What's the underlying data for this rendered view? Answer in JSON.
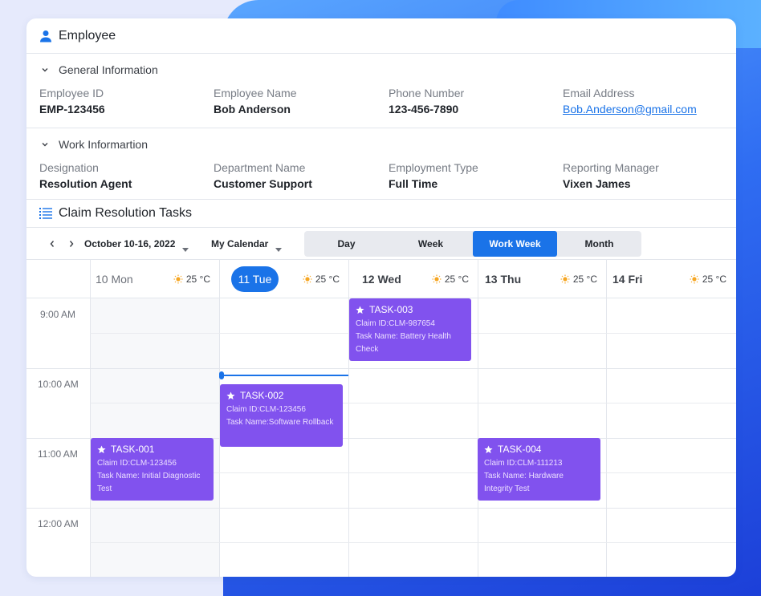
{
  "employee": {
    "title": "Employee",
    "general_section": "General Information",
    "general_fields": [
      {
        "label": "Employee ID",
        "value": "EMP-123456"
      },
      {
        "label": "Employee Name",
        "value": "Bob Anderson"
      },
      {
        "label": "Phone Number",
        "value": "123-456-7890"
      },
      {
        "label": "Email Address",
        "value": "Bob.Anderson@gmail.com"
      }
    ],
    "work_section": "Work Informartion",
    "work_fields": [
      {
        "label": "Designation",
        "value": "Resolution Agent"
      },
      {
        "label": "Department Name",
        "value": "Customer Support"
      },
      {
        "label": "Employment Type",
        "value": "Full Time"
      },
      {
        "label": "Reporting Manager",
        "value": "Vixen James"
      }
    ]
  },
  "tasks": {
    "title": "Claim Resolution Tasks",
    "date_range": "October 10-16, 2022",
    "calendar_select": "My Calendar",
    "views": [
      "Day",
      "Week",
      "Work Week",
      "Month"
    ],
    "active_view": "Work Week",
    "days": [
      {
        "label": "10 Mon",
        "temp": "25 °C"
      },
      {
        "label": "11 Tue",
        "temp": "25 °C",
        "today": true
      },
      {
        "label": "12 Wed",
        "temp": "25 °C"
      },
      {
        "label": "13 Thu",
        "temp": "25 °C"
      },
      {
        "label": "14 Fri",
        "temp": "25 °C"
      }
    ],
    "times": [
      "9:00 AM",
      "10:00 AM",
      "11:00 AM",
      "12:00 AM"
    ],
    "events": [
      {
        "title": "TASK-003",
        "claim": "Claim ID:CLM-987654",
        "task": "Task Name: Battery Health Check"
      },
      {
        "title": "TASK-002",
        "claim": "Claim ID:CLM-123456",
        "task": "Task Name:Software Rollback"
      },
      {
        "title": "TASK-001",
        "claim": "Claim ID:CLM-123456",
        "task": "Task Name: Initial Diagnostic Test"
      },
      {
        "title": "TASK-004",
        "claim": "Claim ID:CLM-111213",
        "task": "Task Name: Hardware Integrity Test"
      }
    ]
  },
  "colors": {
    "accent": "#1a73e8",
    "event": "#8152ee",
    "sun": "#f5a623"
  }
}
